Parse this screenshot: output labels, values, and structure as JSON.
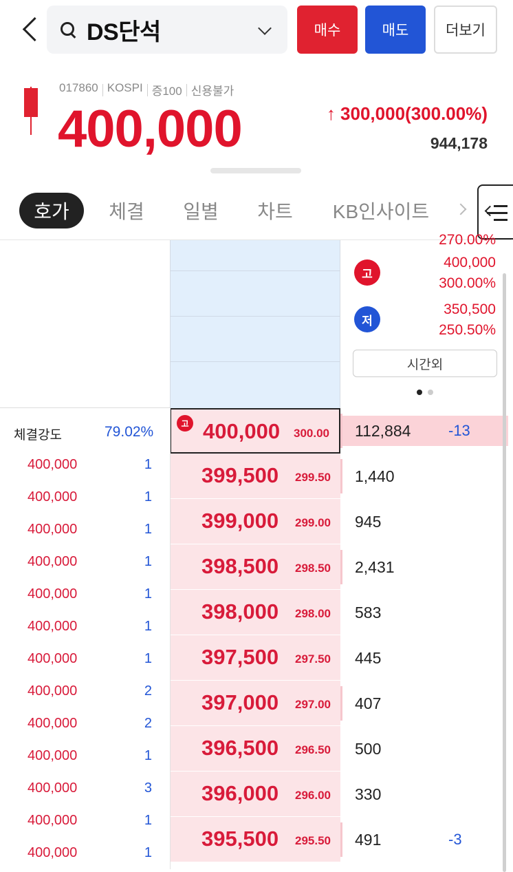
{
  "header": {
    "stock_name": "DS단석",
    "buy_label": "매수",
    "sell_label": "매도",
    "more_label": "더보기"
  },
  "quote": {
    "code": "017860",
    "market": "KOSPI",
    "margin": "증100",
    "credit": "신용불가",
    "price": "400,000",
    "change": "↑ 300,000(300.00%)",
    "volume": "944,178"
  },
  "tabs": [
    "호가",
    "체결",
    "일별",
    "차트",
    "KB인사이트"
  ],
  "info": {
    "cut_text": "270.00%",
    "high_badge": "고",
    "high_price": "400,000",
    "high_pct": "300.00%",
    "low_badge": "저",
    "low_price": "350,500",
    "low_pct": "250.50%",
    "after_hours": "시간외"
  },
  "strength": {
    "label": "체결강도",
    "value": "79.02%"
  },
  "current_badge": "고",
  "orderbook": [
    {
      "price": "400,000",
      "pct": "300.00",
      "volume": "112,884",
      "delta": "-13"
    },
    {
      "price": "399,500",
      "pct": "299.50",
      "volume": "1,440",
      "delta": ""
    },
    {
      "price": "399,000",
      "pct": "299.00",
      "volume": "945",
      "delta": ""
    },
    {
      "price": "398,500",
      "pct": "298.50",
      "volume": "2,431",
      "delta": ""
    },
    {
      "price": "398,000",
      "pct": "298.00",
      "volume": "583",
      "delta": ""
    },
    {
      "price": "397,500",
      "pct": "297.50",
      "volume": "445",
      "delta": ""
    },
    {
      "price": "397,000",
      "pct": "297.00",
      "volume": "407",
      "delta": ""
    },
    {
      "price": "396,500",
      "pct": "296.50",
      "volume": "500",
      "delta": ""
    },
    {
      "price": "396,000",
      "pct": "296.00",
      "volume": "330",
      "delta": ""
    },
    {
      "price": "395,500",
      "pct": "295.50",
      "volume": "491",
      "delta": "-3"
    }
  ],
  "trades": [
    {
      "price": "400,000",
      "qty": "1"
    },
    {
      "price": "400,000",
      "qty": "1"
    },
    {
      "price": "400,000",
      "qty": "1"
    },
    {
      "price": "400,000",
      "qty": "1"
    },
    {
      "price": "400,000",
      "qty": "1"
    },
    {
      "price": "400,000",
      "qty": "1"
    },
    {
      "price": "400,000",
      "qty": "1"
    },
    {
      "price": "400,000",
      "qty": "2"
    },
    {
      "price": "400,000",
      "qty": "2"
    },
    {
      "price": "400,000",
      "qty": "1"
    },
    {
      "price": "400,000",
      "qty": "3"
    },
    {
      "price": "400,000",
      "qty": "1"
    },
    {
      "price": "400,000",
      "qty": "1"
    }
  ]
}
